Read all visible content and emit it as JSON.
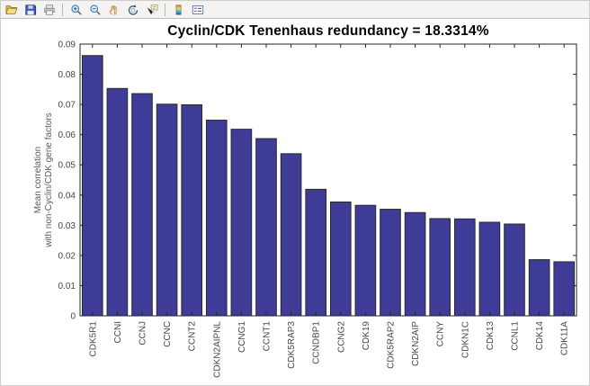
{
  "window": {
    "background": "#ffffff",
    "toolbar_background": "#f4f3f1"
  },
  "toolbar": {
    "icons": [
      {
        "name": "open-folder"
      },
      {
        "name": "save"
      },
      {
        "name": "print"
      },
      {
        "name": "zoom-in"
      },
      {
        "name": "zoom-out"
      },
      {
        "name": "pan"
      },
      {
        "name": "rotate-3d"
      },
      {
        "name": "data-cursor"
      },
      {
        "name": "insert-colorbar"
      },
      {
        "name": "insert-legend"
      }
    ],
    "separators_after": [
      "print",
      "data-cursor"
    ]
  },
  "chart_data": {
    "type": "bar",
    "title": "Cyclin/CDK Tenenhaus redundancy = 18.3314%",
    "ylabel_lines": [
      "Mean correlation",
      "with non-Cyclin/CDK gene factors"
    ],
    "xlabel": "",
    "categories": [
      "CDK5R1",
      "CCNI",
      "CCNJ",
      "CCNC",
      "CCNT2",
      "CDKN2AIPNL",
      "CCNG1",
      "CCNT1",
      "CDK5RAP3",
      "CCNDBP1",
      "CCNG2",
      "CDK19",
      "CDK5RAP2",
      "CDKN2AIP",
      "CCNY",
      "CDKN1C",
      "CDK13",
      "CCNL1",
      "CDK14",
      "CDK11A"
    ],
    "values": [
      0.0862,
      0.0753,
      0.0736,
      0.0701,
      0.0699,
      0.0648,
      0.0618,
      0.0587,
      0.0537,
      0.0419,
      0.0377,
      0.0366,
      0.0353,
      0.0342,
      0.0322,
      0.0321,
      0.031,
      0.0304,
      0.0186,
      0.0179
    ],
    "ylim": [
      0,
      0.09
    ],
    "yticks": [
      0,
      0.01,
      0.02,
      0.03,
      0.04,
      0.05,
      0.06,
      0.07,
      0.08,
      0.09
    ],
    "ytick_labels": [
      "0",
      "0.01",
      "0.02",
      "0.03",
      "0.04",
      "0.05",
      "0.06",
      "0.07",
      "0.08",
      "0.09"
    ],
    "grid": false,
    "legend": null,
    "bar_color": "#3e3c96",
    "bar_edge_color": "#2a2a2a",
    "axis_color": "#262626",
    "tick_label_color": "#454545",
    "ylabel_color": "#5a5a5a",
    "title_color": "#000000"
  }
}
